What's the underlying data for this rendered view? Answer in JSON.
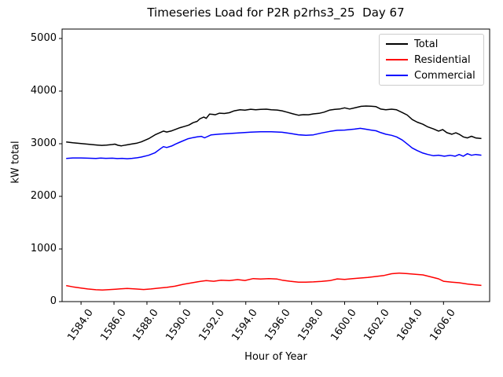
{
  "chart_data": {
    "type": "line",
    "title": "Timeseries Load for P2R p2rhs3_25  Day 67",
    "xlabel": "Hour of Year",
    "ylabel": "kW total",
    "legend_position": "upper right",
    "grid": false,
    "axes": {
      "xlim": [
        1582.85,
        1608.8
      ],
      "ylim": [
        0,
        5179
      ],
      "x_tick_values": [
        1584,
        1586,
        1588,
        1590,
        1592,
        1594,
        1596,
        1598,
        1600,
        1602,
        1604,
        1606
      ],
      "x_tick_labels": [
        "1584.0",
        "1586.0",
        "1588.0",
        "1590.0",
        "1592.0",
        "1594.0",
        "1596.0",
        "1598.0",
        "1600.0",
        "1602.0",
        "1604.0",
        "1606.0"
      ],
      "y_tick_values": [
        0,
        1000,
        2000,
        3000,
        4000,
        5000
      ],
      "y_tick_labels": [
        "0",
        "1000",
        "2000",
        "3000",
        "4000",
        "5000"
      ]
    },
    "series": [
      {
        "name": "Total",
        "color": "#000000",
        "points": [
          [
            1583.1,
            3035
          ],
          [
            1583.5,
            3020
          ],
          [
            1584.0,
            3005
          ],
          [
            1584.5,
            2990
          ],
          [
            1585.0,
            2975
          ],
          [
            1585.25,
            2968
          ],
          [
            1585.55,
            2975
          ],
          [
            1585.9,
            2985
          ],
          [
            1586.05,
            2992
          ],
          [
            1586.25,
            2970
          ],
          [
            1586.45,
            2960
          ],
          [
            1586.7,
            2975
          ],
          [
            1587.1,
            2995
          ],
          [
            1587.4,
            3012
          ],
          [
            1587.65,
            3035
          ],
          [
            1588.1,
            3095
          ],
          [
            1588.5,
            3170
          ],
          [
            1588.8,
            3212
          ],
          [
            1589.0,
            3240
          ],
          [
            1589.2,
            3222
          ],
          [
            1589.5,
            3245
          ],
          [
            1589.8,
            3280
          ],
          [
            1590.0,
            3305
          ],
          [
            1590.3,
            3332
          ],
          [
            1590.55,
            3355
          ],
          [
            1590.8,
            3400
          ],
          [
            1591.05,
            3425
          ],
          [
            1591.2,
            3470
          ],
          [
            1591.45,
            3508
          ],
          [
            1591.6,
            3482
          ],
          [
            1591.8,
            3562
          ],
          [
            1592.0,
            3558
          ],
          [
            1592.15,
            3550
          ],
          [
            1592.4,
            3580
          ],
          [
            1592.7,
            3575
          ],
          [
            1593.0,
            3590
          ],
          [
            1593.3,
            3625
          ],
          [
            1593.65,
            3645
          ],
          [
            1593.95,
            3638
          ],
          [
            1594.3,
            3655
          ],
          [
            1594.6,
            3645
          ],
          [
            1594.9,
            3652
          ],
          [
            1595.25,
            3657
          ],
          [
            1595.55,
            3645
          ],
          [
            1595.9,
            3640
          ],
          [
            1596.2,
            3625
          ],
          [
            1596.5,
            3600
          ],
          [
            1596.85,
            3568
          ],
          [
            1597.2,
            3542
          ],
          [
            1597.5,
            3552
          ],
          [
            1597.8,
            3550
          ],
          [
            1598.1,
            3567
          ],
          [
            1598.45,
            3578
          ],
          [
            1598.75,
            3600
          ],
          [
            1599.1,
            3640
          ],
          [
            1599.4,
            3652
          ],
          [
            1599.7,
            3660
          ],
          [
            1600.0,
            3682
          ],
          [
            1600.3,
            3660
          ],
          [
            1600.6,
            3680
          ],
          [
            1601.0,
            3710
          ],
          [
            1601.3,
            3716
          ],
          [
            1601.6,
            3714
          ],
          [
            1601.9,
            3704
          ],
          [
            1602.2,
            3658
          ],
          [
            1602.5,
            3645
          ],
          [
            1602.85,
            3656
          ],
          [
            1603.15,
            3645
          ],
          [
            1603.5,
            3592
          ],
          [
            1603.8,
            3545
          ],
          [
            1604.1,
            3460
          ],
          [
            1604.4,
            3410
          ],
          [
            1604.75,
            3370
          ],
          [
            1605.05,
            3320
          ],
          [
            1605.4,
            3280
          ],
          [
            1605.7,
            3240
          ],
          [
            1605.95,
            3268
          ],
          [
            1606.2,
            3210
          ],
          [
            1606.5,
            3180
          ],
          [
            1606.75,
            3208
          ],
          [
            1606.95,
            3180
          ],
          [
            1607.2,
            3130
          ],
          [
            1607.45,
            3110
          ],
          [
            1607.7,
            3142
          ],
          [
            1607.95,
            3110
          ],
          [
            1608.3,
            3098
          ]
        ]
      },
      {
        "name": "Residential",
        "color": "#ff0000",
        "points": [
          [
            1583.1,
            305
          ],
          [
            1583.5,
            280
          ],
          [
            1584.0,
            258
          ],
          [
            1584.4,
            240
          ],
          [
            1584.9,
            226
          ],
          [
            1585.3,
            220
          ],
          [
            1585.7,
            228
          ],
          [
            1586.1,
            236
          ],
          [
            1586.4,
            242
          ],
          [
            1586.8,
            250
          ],
          [
            1587.3,
            240
          ],
          [
            1587.8,
            230
          ],
          [
            1588.25,
            240
          ],
          [
            1588.75,
            258
          ],
          [
            1589.2,
            270
          ],
          [
            1589.7,
            292
          ],
          [
            1590.2,
            328
          ],
          [
            1590.65,
            352
          ],
          [
            1591.1,
            378
          ],
          [
            1591.6,
            398
          ],
          [
            1592.05,
            386
          ],
          [
            1592.5,
            408
          ],
          [
            1593.0,
            398
          ],
          [
            1593.5,
            418
          ],
          [
            1593.95,
            402
          ],
          [
            1594.45,
            438
          ],
          [
            1594.9,
            428
          ],
          [
            1595.4,
            438
          ],
          [
            1595.9,
            428
          ],
          [
            1596.2,
            408
          ],
          [
            1596.7,
            386
          ],
          [
            1597.2,
            370
          ],
          [
            1597.65,
            370
          ],
          [
            1598.1,
            374
          ],
          [
            1598.6,
            383
          ],
          [
            1599.1,
            398
          ],
          [
            1599.55,
            432
          ],
          [
            1600.0,
            422
          ],
          [
            1600.5,
            437
          ],
          [
            1600.95,
            448
          ],
          [
            1601.4,
            458
          ],
          [
            1601.9,
            478
          ],
          [
            1602.4,
            497
          ],
          [
            1602.85,
            530
          ],
          [
            1603.3,
            542
          ],
          [
            1603.8,
            532
          ],
          [
            1604.3,
            518
          ],
          [
            1604.75,
            507
          ],
          [
            1605.25,
            468
          ],
          [
            1605.7,
            433
          ],
          [
            1606.0,
            386
          ],
          [
            1606.5,
            370
          ],
          [
            1606.95,
            358
          ],
          [
            1607.45,
            334
          ],
          [
            1607.95,
            318
          ],
          [
            1608.3,
            308
          ]
        ]
      },
      {
        "name": "Commercial",
        "color": "#0000ff",
        "points": [
          [
            1583.1,
            2720
          ],
          [
            1583.5,
            2730
          ],
          [
            1584.0,
            2730
          ],
          [
            1584.4,
            2725
          ],
          [
            1584.9,
            2720
          ],
          [
            1585.2,
            2728
          ],
          [
            1585.5,
            2722
          ],
          [
            1585.9,
            2726
          ],
          [
            1586.2,
            2718
          ],
          [
            1586.5,
            2723
          ],
          [
            1586.8,
            2715
          ],
          [
            1587.1,
            2722
          ],
          [
            1587.4,
            2733
          ],
          [
            1587.65,
            2746
          ],
          [
            1588.1,
            2780
          ],
          [
            1588.5,
            2830
          ],
          [
            1588.8,
            2900
          ],
          [
            1589.0,
            2945
          ],
          [
            1589.2,
            2928
          ],
          [
            1589.5,
            2956
          ],
          [
            1589.75,
            2995
          ],
          [
            1590.0,
            3030
          ],
          [
            1590.5,
            3095
          ],
          [
            1590.8,
            3116
          ],
          [
            1591.05,
            3130
          ],
          [
            1591.3,
            3140
          ],
          [
            1591.5,
            3112
          ],
          [
            1591.9,
            3168
          ],
          [
            1592.4,
            3184
          ],
          [
            1593.0,
            3194
          ],
          [
            1593.65,
            3208
          ],
          [
            1594.3,
            3220
          ],
          [
            1594.9,
            3228
          ],
          [
            1595.55,
            3228
          ],
          [
            1596.2,
            3218
          ],
          [
            1596.7,
            3196
          ],
          [
            1597.2,
            3170
          ],
          [
            1597.65,
            3160
          ],
          [
            1598.1,
            3168
          ],
          [
            1598.6,
            3205
          ],
          [
            1599.1,
            3234
          ],
          [
            1599.55,
            3255
          ],
          [
            1600.0,
            3260
          ],
          [
            1600.3,
            3268
          ],
          [
            1600.6,
            3278
          ],
          [
            1600.95,
            3292
          ],
          [
            1601.25,
            3278
          ],
          [
            1601.6,
            3260
          ],
          [
            1601.9,
            3246
          ],
          [
            1602.2,
            3210
          ],
          [
            1602.5,
            3180
          ],
          [
            1602.85,
            3160
          ],
          [
            1603.15,
            3130
          ],
          [
            1603.5,
            3070
          ],
          [
            1603.8,
            2996
          ],
          [
            1604.1,
            2920
          ],
          [
            1604.4,
            2870
          ],
          [
            1604.75,
            2822
          ],
          [
            1605.05,
            2796
          ],
          [
            1605.4,
            2772
          ],
          [
            1605.7,
            2782
          ],
          [
            1606.05,
            2762
          ],
          [
            1606.4,
            2780
          ],
          [
            1606.7,
            2762
          ],
          [
            1606.95,
            2796
          ],
          [
            1607.2,
            2762
          ],
          [
            1607.45,
            2810
          ],
          [
            1607.7,
            2780
          ],
          [
            1607.95,
            2796
          ],
          [
            1608.3,
            2782
          ]
        ]
      }
    ]
  }
}
